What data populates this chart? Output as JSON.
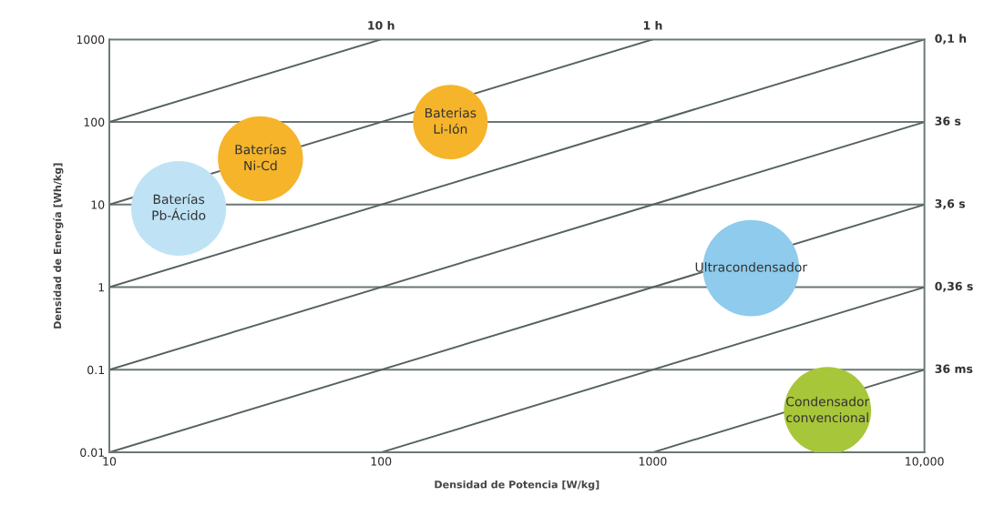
{
  "chart_data": {
    "type": "bubble",
    "xlabel": "Densidad de Potencia [W/kg]",
    "ylabel": "Densidad de Energía [Wh/kg]",
    "log": "xy",
    "grid": "y",
    "xlim": [
      10,
      10000
    ],
    "ylim": [
      0.01,
      1000
    ],
    "xticks": [
      10,
      100,
      1000,
      {
        "value": 10000,
        "label": "10,000"
      }
    ],
    "yticks": [
      0.01,
      0.1,
      1,
      10,
      100,
      1000
    ],
    "series": [
      {
        "name": "10 h",
        "type": "line",
        "color": "#55625f",
        "x": [
          10,
          100
        ],
        "values": [
          100,
          1000
        ]
      },
      {
        "name": "1 h",
        "type": "line",
        "color": "#55625f",
        "x": [
          10,
          1000
        ],
        "values": [
          10,
          1000
        ]
      },
      {
        "name": "0,1 h",
        "type": "line",
        "color": "#55625f",
        "x": [
          10,
          10000
        ],
        "values": [
          1,
          1000
        ]
      },
      {
        "name": "36 s",
        "type": "line",
        "color": "#55625f",
        "x": [
          10,
          10000
        ],
        "values": [
          0.1,
          100
        ]
      },
      {
        "name": "3,6 s",
        "type": "line",
        "color": "#55625f",
        "x": [
          10,
          10000
        ],
        "values": [
          0.01,
          10
        ]
      },
      {
        "name": "0,36 s",
        "type": "line",
        "color": "#55625f",
        "x": [
          100,
          10000
        ],
        "values": [
          0.01,
          1
        ]
      },
      {
        "name": "36 ms",
        "type": "line",
        "color": "#55625f",
        "x": [
          1000,
          10000
        ],
        "values": [
          0.01,
          0.1
        ]
      },
      {
        "name": "Baterías\nPb-Ácido",
        "color": "#bfe3f5",
        "x": [
          18
        ],
        "values": [
          9
        ],
        "sizes": [
          0.97
        ]
      },
      {
        "name": "Baterías\nNi-Cd",
        "color": "#f5b42a",
        "x": [
          36
        ],
        "values": [
          36
        ],
        "sizes": [
          0.78
        ]
      },
      {
        "name": "Baterias\nLi-Ión",
        "color": "#f5b42a",
        "x": [
          180
        ],
        "values": [
          100
        ],
        "sizes": [
          0.6
        ]
      },
      {
        "name": "Ultracondensador",
        "color": "#8ecbec",
        "x": [
          2300
        ],
        "values": [
          1.7
        ],
        "sizes": [
          1
        ]
      },
      {
        "name": "Condensador\nconvencional",
        "color": "#a8c63a",
        "x": [
          4400
        ],
        "values": [
          0.032
        ],
        "sizes": [
          0.82
        ]
      }
    ]
  }
}
